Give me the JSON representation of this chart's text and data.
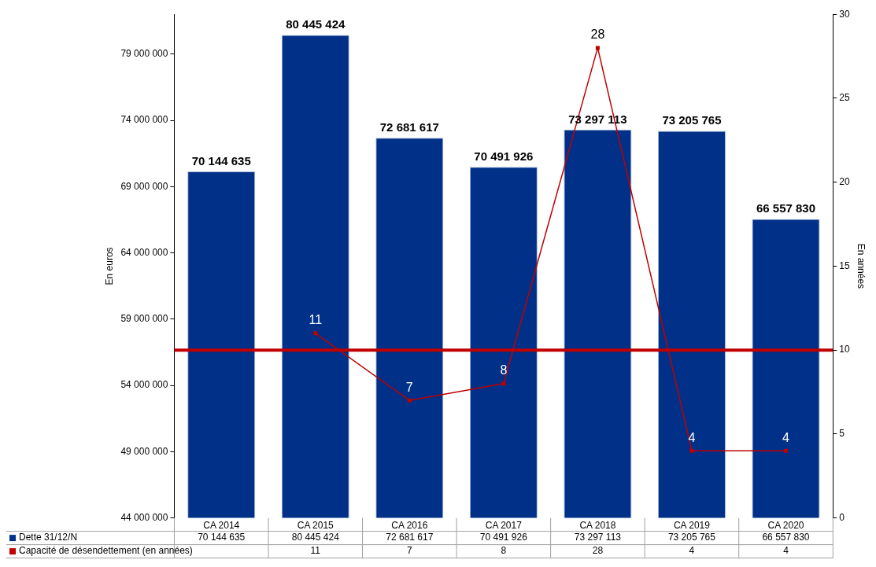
{
  "chart_data": {
    "type": "bar",
    "ylabel": "En euros",
    "y2label": "En années",
    "categories": [
      "CA 2014",
      "CA 2015",
      "CA 2016",
      "CA 2017",
      "CA 2018",
      "CA 2019",
      "CA 2020"
    ],
    "series": [
      {
        "name": "Dette 31/12/N",
        "color": "#003087",
        "values": [
          70144635,
          80445424,
          72681617,
          70491926,
          73297113,
          73205765,
          66557830
        ],
        "value_labels": [
          "70 144 635",
          "80 445 424",
          "72 681 617",
          "70 491 926",
          "73 297 113",
          "73 205 765",
          "66 557 830"
        ]
      },
      {
        "name": "Capacité de désendettement (en années)",
        "type": "line",
        "axis": "y2",
        "color": "#c00000",
        "marker": "square",
        "values": [
          null,
          11,
          7,
          8,
          28,
          4,
          4
        ],
        "value_labels": [
          null,
          "11",
          "7",
          "8",
          "28",
          "4",
          "4"
        ]
      }
    ],
    "ylim": [
      44000000,
      82000000
    ],
    "yticks": [
      {
        "value": 44000000,
        "label": "44 000 000"
      },
      {
        "value": 49000000,
        "label": "49 000 000"
      },
      {
        "value": 54000000,
        "label": "54 000 000"
      },
      {
        "value": 59000000,
        "label": "59 000 000"
      },
      {
        "value": 64000000,
        "label": "64 000 000"
      },
      {
        "value": 69000000,
        "label": "69 000 000"
      },
      {
        "value": 74000000,
        "label": "74 000 000"
      },
      {
        "value": 79000000,
        "label": "79 000 000"
      }
    ],
    "y2lim": [
      0,
      30
    ],
    "y2ticks": [
      0,
      5,
      10,
      15,
      20,
      25,
      30
    ],
    "ref_lines": [
      {
        "axis": "y2",
        "value": 10,
        "color": "#c00000"
      }
    ],
    "grid": false,
    "legend": "bottom"
  }
}
